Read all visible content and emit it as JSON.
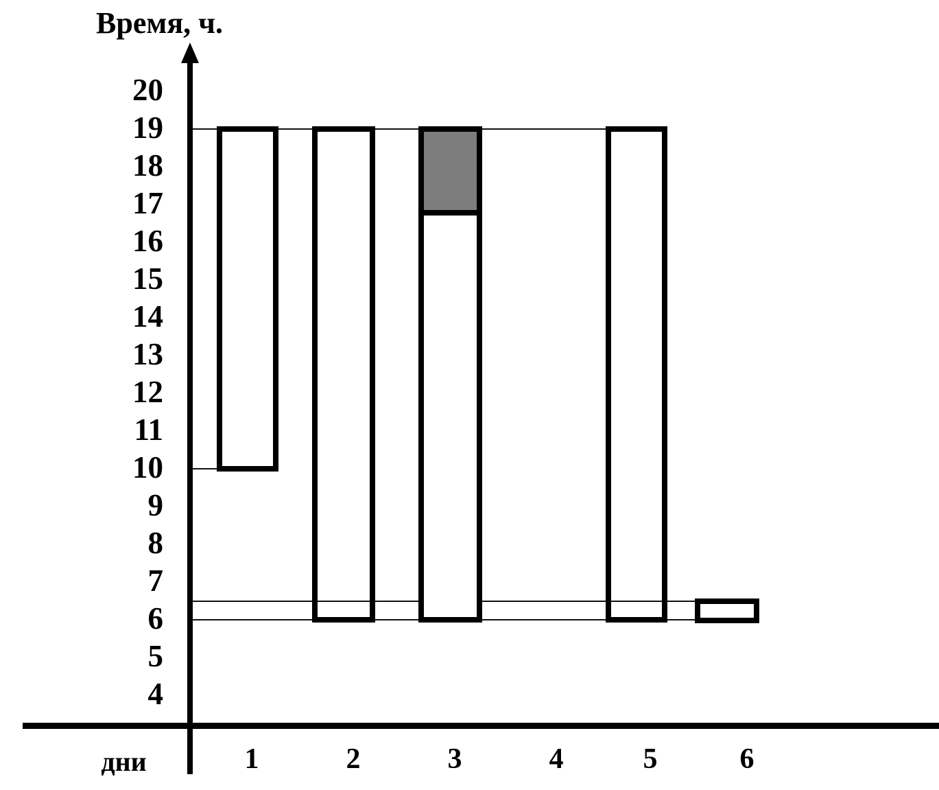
{
  "chart_data": {
    "type": "bar",
    "title": "Время, ч.",
    "xlabel": "дни",
    "ylabel": "Время, ч.",
    "y_ticks": [
      "20",
      "19",
      "18",
      "17",
      "16",
      "15",
      "14",
      "13",
      "12",
      "11",
      "10",
      "9",
      "8",
      "7",
      "6",
      "5",
      "4"
    ],
    "categories": [
      "1",
      "2",
      "3",
      "4",
      "5",
      "6"
    ],
    "ylim": [
      4,
      20
    ],
    "grid": "horizontal reference lines only at 19, 10, 6.5 and 6",
    "legend": null,
    "bars": [
      {
        "day": "1",
        "start": 10,
        "end": 19,
        "segments": [
          {
            "from": 10,
            "to": 19,
            "fill": "white"
          }
        ]
      },
      {
        "day": "2",
        "start": 6,
        "end": 19,
        "segments": [
          {
            "from": 6,
            "to": 19,
            "fill": "white"
          }
        ]
      },
      {
        "day": "3",
        "start": 6,
        "end": 19,
        "segments": [
          {
            "from": 6,
            "to": 17,
            "fill": "white"
          },
          {
            "from": 17,
            "to": 19,
            "fill": "gray"
          }
        ]
      },
      {
        "day": "4",
        "start": null,
        "end": null,
        "segments": []
      },
      {
        "day": "5",
        "start": 6,
        "end": 19,
        "segments": [
          {
            "from": 6,
            "to": 19,
            "fill": "white"
          }
        ]
      },
      {
        "day": "6",
        "start": 6,
        "end": 6.5,
        "segments": [
          {
            "from": 6,
            "to": 6.5,
            "fill": "white"
          }
        ]
      }
    ],
    "reference_lines": [
      19,
      10,
      6.5,
      6
    ],
    "colors": {
      "bar_outline": "#000000",
      "shaded_fill": "#7d7d7d",
      "background": "#ffffff",
      "text": "#000000"
    }
  }
}
